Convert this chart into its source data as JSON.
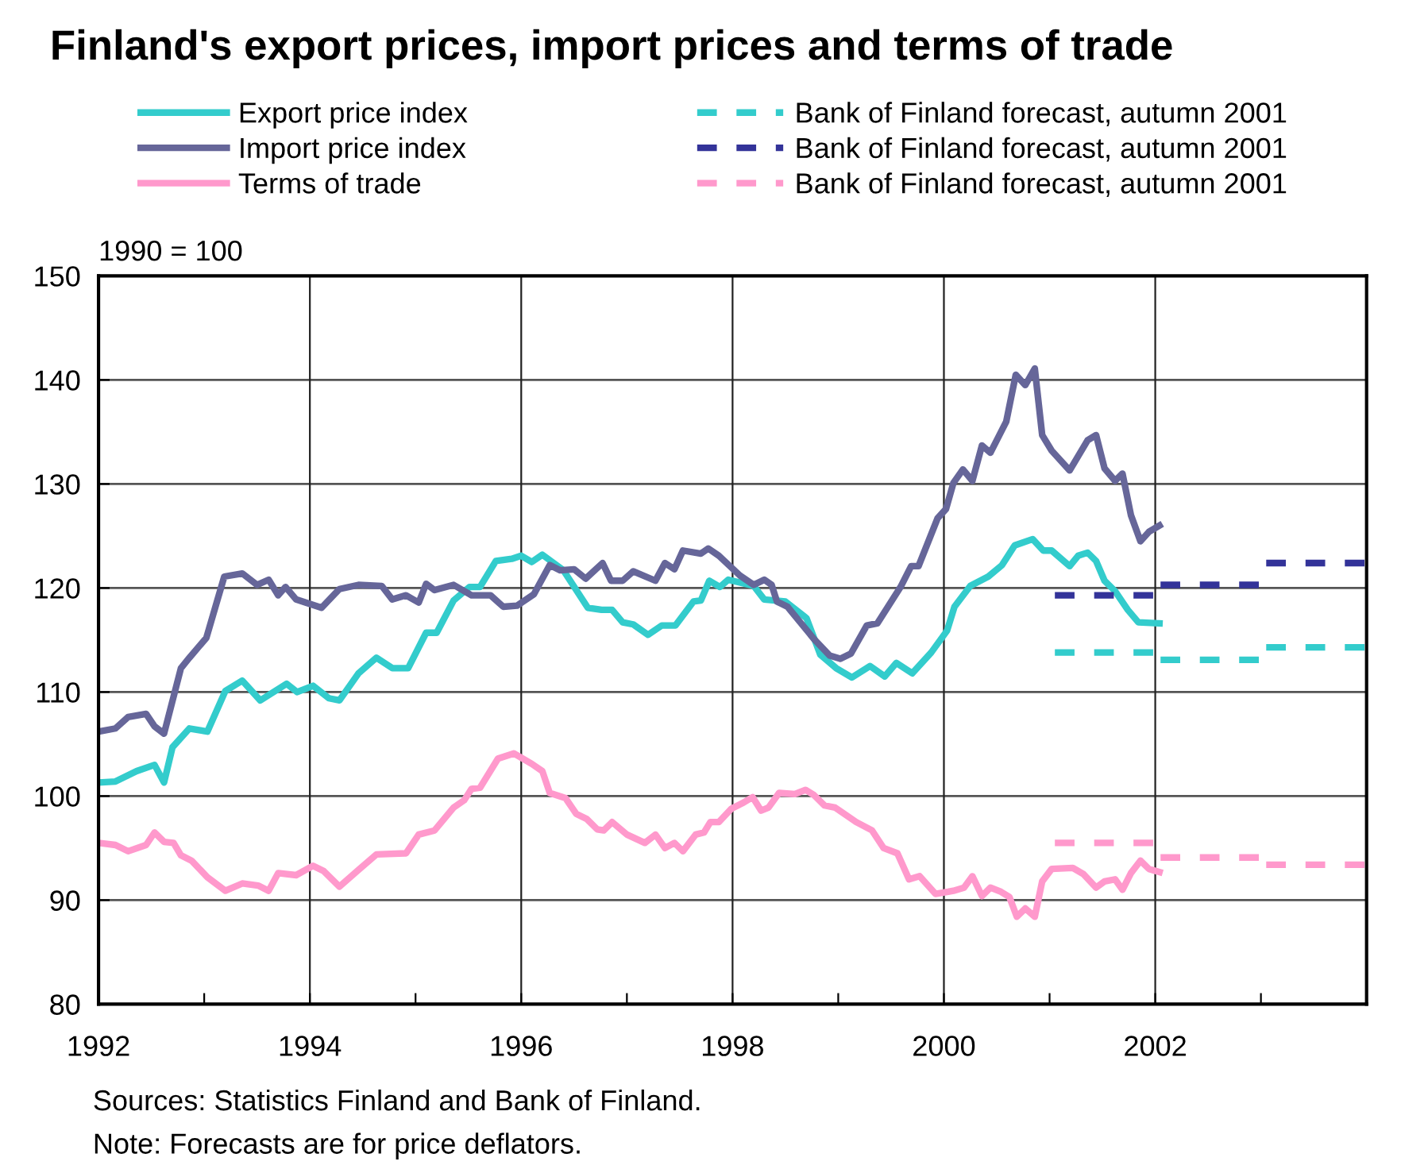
{
  "chart_data": {
    "type": "line",
    "title": "Finland's export prices, import prices and terms of trade",
    "ylabel": "1990 = 100",
    "xlim": [
      1992,
      2004
    ],
    "ylim": [
      80,
      150
    ],
    "xticks": [
      1992,
      {
        "value": 1993,
        "label": null
      },
      1994,
      {
        "value": 1995,
        "label": null
      },
      1996,
      {
        "value": 1997,
        "label": null
      },
      1998,
      {
        "value": 1999,
        "label": null
      },
      2000,
      {
        "value": 2001,
        "label": null
      },
      2002,
      {
        "value": 2003,
        "label": null
      },
      {
        "value": 2004,
        "label": null
      }
    ],
    "yticks": [
      80,
      90,
      100,
      110,
      120,
      130,
      140,
      150
    ],
    "grid": true,
    "legend": "top",
    "line_style": "solid",
    "marker": "none",
    "series": [
      {
        "name": "Export price index",
        "color": "#33cccc",
        "x": [
          1992,
          1992.16,
          1992.36,
          1992.53,
          1992.62,
          1992.7,
          1992.86,
          1993.03,
          1993.2,
          1993.36,
          1993.53,
          1993.78,
          1993.88,
          1994.03,
          1994.18,
          1994.28,
          1994.46,
          1994.63,
          1994.78,
          1994.93,
          1995.1,
          1995.2,
          1995.36,
          1995.51,
          1995.61,
          1995.76,
          1995.91,
          1996.0,
          1996.1,
          1996.2,
          1996.4,
          1996.63,
          1996.76,
          1996.86,
          1996.96,
          1997.06,
          1997.2,
          1997.33,
          1997.46,
          1997.63,
          1997.7,
          1997.78,
          1997.88,
          1997.96,
          1998.2,
          1998.3,
          1998.5,
          1998.7,
          1998.83,
          1998.98,
          1999.13,
          1999.3,
          1999.44,
          1999.55,
          1999.7,
          1999.88,
          2000.03,
          2000.1,
          2000.25,
          2000.42,
          2000.55,
          2000.67,
          2000.84,
          2000.94,
          2001.02,
          2001.19,
          2001.27,
          2001.36,
          2001.44,
          2001.52,
          2001.62,
          2001.74,
          2001.84,
          2002.04
        ],
        "values": [
          101.3,
          101.4,
          102.4,
          103.0,
          101.3,
          104.7,
          106.5,
          106.2,
          110.1,
          111.1,
          109.2,
          110.8,
          110.0,
          110.6,
          109.4,
          109.2,
          111.8,
          113.3,
          112.3,
          112.3,
          115.7,
          115.7,
          118.8,
          120.1,
          120.1,
          122.6,
          122.8,
          123.1,
          122.5,
          123.2,
          121.7,
          118.1,
          117.9,
          117.9,
          116.7,
          116.5,
          115.5,
          116.4,
          116.4,
          118.7,
          118.8,
          120.7,
          120.1,
          120.8,
          120.2,
          118.9,
          118.7,
          117.1,
          113.6,
          112.3,
          111.4,
          112.5,
          111.5,
          112.8,
          111.8,
          113.8,
          115.9,
          118.2,
          120.2,
          121.1,
          122.2,
          124.1,
          124.7,
          123.6,
          123.6,
          122.1,
          123.1,
          123.4,
          122.6,
          120.7,
          119.7,
          117.9,
          116.7,
          116.6
        ]
      },
      {
        "name": "Import price index",
        "color": "#666699",
        "x": [
          1992,
          1992.16,
          1992.28,
          1992.45,
          1992.53,
          1992.62,
          1992.78,
          1992.86,
          1993.02,
          1993.19,
          1993.36,
          1993.5,
          1993.61,
          1993.7,
          1993.77,
          1993.87,
          1994.11,
          1994.28,
          1994.46,
          1994.68,
          1994.78,
          1994.91,
          1995.03,
          1995.1,
          1995.18,
          1995.36,
          1995.53,
          1995.71,
          1995.83,
          1995.96,
          1996.12,
          1996.27,
          1996.37,
          1996.5,
          1996.61,
          1996.77,
          1996.85,
          1996.96,
          1997.06,
          1997.27,
          1997.36,
          1997.45,
          1997.53,
          1997.7,
          1997.77,
          1997.87,
          1998.07,
          1998.2,
          1998.3,
          1998.37,
          1998.42,
          1998.52,
          1998.77,
          1998.92,
          1999.02,
          1999.12,
          1999.27,
          1999.37,
          1999.59,
          1999.69,
          1999.76,
          1999.94,
          2000.02,
          2000.09,
          2000.18,
          2000.27,
          2000.36,
          2000.44,
          2000.59,
          2000.68,
          2000.77,
          2000.86,
          2000.93,
          2001.02,
          2001.19,
          2001.36,
          2001.44,
          2001.52,
          2001.62,
          2001.69,
          2001.77,
          2001.86,
          2001.94,
          2002.04
        ],
        "values": [
          106.2,
          106.5,
          107.6,
          107.9,
          106.7,
          106.0,
          112.3,
          113.3,
          115.2,
          121.1,
          121.4,
          120.3,
          120.8,
          119.3,
          120.1,
          118.9,
          118.1,
          119.9,
          120.3,
          120.2,
          118.9,
          119.3,
          118.6,
          120.4,
          119.8,
          120.3,
          119.3,
          119.3,
          118.2,
          118.3,
          119.4,
          122.2,
          121.7,
          121.8,
          120.9,
          122.4,
          120.7,
          120.7,
          121.6,
          120.7,
          122.4,
          121.8,
          123.6,
          123.3,
          123.8,
          123.1,
          121.2,
          120.3,
          120.8,
          120.3,
          118.7,
          118.2,
          115.1,
          113.5,
          113.2,
          113.7,
          116.4,
          116.6,
          120.1,
          122.1,
          122.1,
          126.7,
          127.6,
          130.1,
          131.4,
          130.3,
          133.7,
          133.0,
          136.0,
          140.5,
          139.5,
          141.1,
          134.7,
          133.2,
          131.3,
          134.2,
          134.7,
          131.5,
          130.3,
          131.0,
          127.0,
          124.5,
          125.4,
          126.0
        ]
      },
      {
        "name": "Terms of trade",
        "color": "#ff99cc",
        "x": [
          1992,
          1992.16,
          1992.28,
          1992.45,
          1992.53,
          1992.62,
          1992.71,
          1992.78,
          1992.88,
          1993.03,
          1993.2,
          1993.36,
          1993.51,
          1993.61,
          1993.7,
          1993.87,
          1994.03,
          1994.13,
          1994.28,
          1994.46,
          1994.63,
          1994.91,
          1995.03,
          1995.18,
          1995.36,
          1995.46,
          1995.53,
          1995.61,
          1995.78,
          1995.93,
          1996.1,
          1996.2,
          1996.27,
          1996.42,
          1996.52,
          1996.62,
          1996.72,
          1996.78,
          1996.86,
          1997.0,
          1997.17,
          1997.27,
          1997.36,
          1997.45,
          1997.53,
          1997.65,
          1997.73,
          1997.79,
          1997.87,
          1997.99,
          1998.09,
          1998.19,
          1998.27,
          1998.34,
          1998.44,
          1998.59,
          1998.69,
          1998.77,
          1998.87,
          1998.97,
          1999.17,
          1999.32,
          1999.43,
          1999.56,
          1999.67,
          1999.77,
          1999.92,
          2000.04,
          2000.09,
          2000.19,
          2000.27,
          2000.36,
          2000.44,
          2000.54,
          2000.62,
          2000.69,
          2000.77,
          2000.86,
          2000.93,
          2001.02,
          2001.22,
          2001.32,
          2001.44,
          2001.52,
          2001.62,
          2001.69,
          2001.77,
          2001.86,
          2001.94,
          2002.04
        ],
        "values": [
          95.5,
          95.3,
          94.7,
          95.3,
          96.5,
          95.6,
          95.5,
          94.3,
          93.8,
          92.2,
          90.9,
          91.6,
          91.4,
          90.9,
          92.6,
          92.4,
          93.3,
          92.8,
          91.3,
          92.9,
          94.4,
          94.5,
          96.3,
          96.7,
          98.9,
          99.6,
          100.7,
          100.8,
          103.6,
          104.1,
          103.1,
          102.4,
          100.3,
          99.8,
          98.3,
          97.8,
          96.8,
          96.7,
          97.5,
          96.3,
          95.5,
          96.3,
          95.0,
          95.5,
          94.7,
          96.3,
          96.5,
          97.5,
          97.5,
          98.8,
          99.3,
          99.9,
          98.6,
          98.9,
          100.3,
          100.2,
          100.6,
          100.1,
          99.1,
          98.9,
          97.5,
          96.7,
          95.0,
          94.5,
          92.0,
          92.3,
          90.6,
          90.8,
          90.9,
          91.2,
          92.3,
          90.4,
          91.2,
          90.8,
          90.3,
          88.4,
          89.2,
          88.4,
          91.8,
          93.0,
          93.1,
          92.5,
          91.2,
          91.8,
          92.0,
          91.0,
          92.6,
          93.8,
          93.0,
          92.7
        ]
      },
      {
        "name": "Bank of Finland forecast, autumn 2001",
        "color": "#33cccc",
        "line_style": "dashed",
        "x": [
          2001.05,
          2001.98,
          2002.0,
          2002.05,
          2002.98,
          2003.0,
          2003.05,
          2003.98
        ],
        "values": [
          113.8,
          113.8,
          null,
          113.1,
          113.1,
          null,
          114.3,
          114.3
        ]
      },
      {
        "name": "Bank of Finland forecast, autumn 2001",
        "color": "#333399",
        "line_style": "dashed",
        "x": [
          2001.05,
          2001.98,
          2002.0,
          2002.05,
          2002.98,
          2003.0,
          2003.05,
          2003.98
        ],
        "values": [
          119.3,
          119.3,
          null,
          120.3,
          120.3,
          null,
          122.4,
          122.4
        ]
      },
      {
        "name": "Bank of Finland forecast, autumn 2001",
        "color": "#ff99cc",
        "line_style": "dashed",
        "x": [
          2001.05,
          2001.98,
          2002.0,
          2002.05,
          2002.98,
          2003.0,
          2003.05,
          2003.98
        ],
        "values": [
          95.5,
          95.5,
          null,
          94.1,
          94.1,
          null,
          93.4,
          93.4
        ]
      }
    ],
    "annotations": [
      "Sources: Statistics Finland and Bank of Finland.",
      "Note: Forecasts are for price deflators."
    ]
  }
}
